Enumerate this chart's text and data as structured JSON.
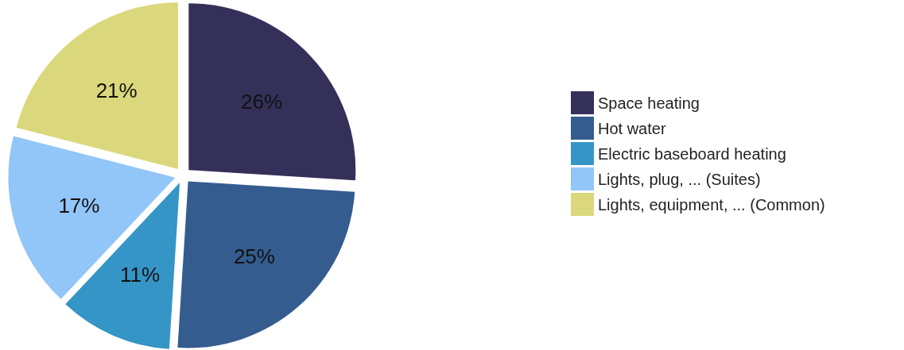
{
  "chart_data": {
    "type": "pie",
    "categories": [
      "Space heating",
      "Hot water",
      "Electric baseboard heating",
      "Lights, plug, ... (Suites)",
      "Lights, equipment, ... (Common)"
    ],
    "values": [
      26,
      25,
      11,
      17,
      21
    ],
    "colors": [
      "#35305a",
      "#345c8e",
      "#3595c6",
      "#92c5f8",
      "#dbd77c"
    ],
    "value_labels": [
      "26%",
      "25%",
      "11%",
      "17%",
      "21%"
    ],
    "legend": "right"
  }
}
